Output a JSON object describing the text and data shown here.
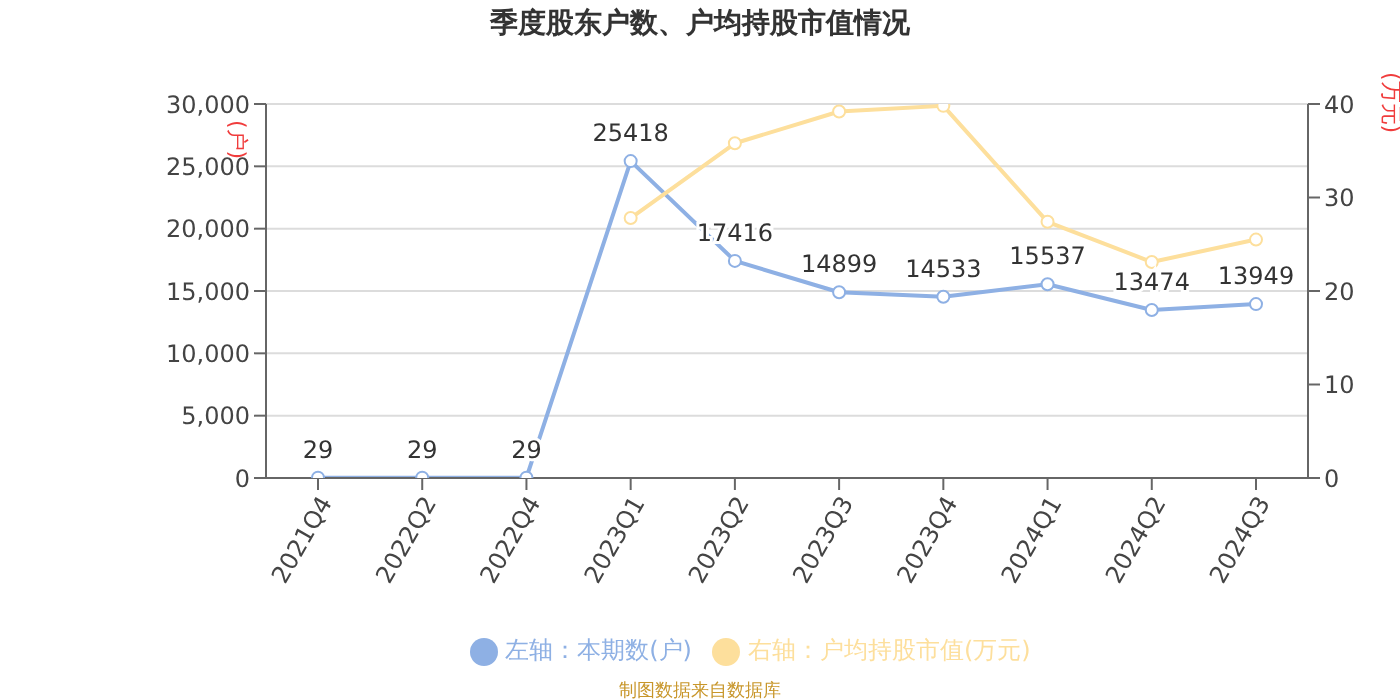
{
  "chart_data": {
    "type": "line",
    "title": "季度股东户数、户均持股市值情况",
    "ylabel": "(户)",
    "y2label": "(万元)",
    "categories": [
      "2021Q4",
      "2022Q2",
      "2022Q4",
      "2023Q1",
      "2023Q2",
      "2023Q3",
      "2023Q4",
      "2024Q1",
      "2024Q2",
      "2024Q3"
    ],
    "series": [
      {
        "name": "左轴：本期数(户)",
        "color": "#8eb0e4",
        "values": [
          29,
          29,
          29,
          25418,
          17416,
          14899,
          14533,
          15537,
          13474,
          13949
        ],
        "value_labels": [
          "29",
          "29",
          "29",
          "25418",
          "17416",
          "14899",
          "14533",
          "15537",
          "13474",
          "13949"
        ]
      },
      {
        "name": "右轴：户均持股市值(万元)",
        "color": "#fddf9c",
        "axis": "y2",
        "values": [
          null,
          null,
          null,
          27.8,
          35.8,
          39.2,
          39.8,
          27.4,
          23.1,
          25.5
        ]
      }
    ],
    "ylim": [
      0,
      30000
    ],
    "yticks": [
      {
        "value": 0,
        "label": "0"
      },
      {
        "value": 5000,
        "label": "5,000"
      },
      {
        "value": 10000,
        "label": "10,000"
      },
      {
        "value": 15000,
        "label": "15,000"
      },
      {
        "value": 20000,
        "label": "20,000"
      },
      {
        "value": 25000,
        "label": "25,000"
      },
      {
        "value": 30000,
        "label": "30,000"
      }
    ],
    "y2lim": [
      0,
      40
    ],
    "y2ticks": [
      0,
      10,
      20,
      30,
      40
    ],
    "grid": "y",
    "legend": "bottom",
    "marker": "circle",
    "line_style": "solid",
    "annotations": [
      "制图数据来自数据库"
    ]
  }
}
